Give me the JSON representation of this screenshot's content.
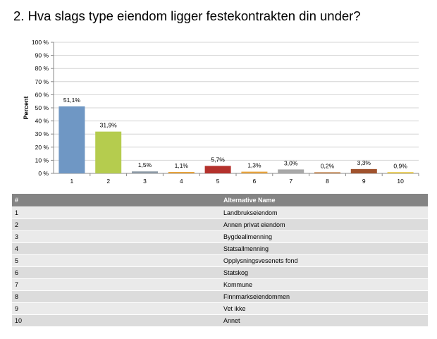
{
  "title": "2. Hva slags type eiendom ligger festekontrakten din under?",
  "chart_data": {
    "type": "bar",
    "categories": [
      "1",
      "2",
      "3",
      "4",
      "5",
      "6",
      "7",
      "8",
      "9",
      "10"
    ],
    "values": [
      51.1,
      31.9,
      1.5,
      1.1,
      5.7,
      1.3,
      3.0,
      0.2,
      3.3,
      0.9
    ],
    "value_labels": [
      "51,1%",
      "31,9%",
      "1,5%",
      "1,1%",
      "5,7%",
      "1,3%",
      "3,0%",
      "0,2%",
      "3,3%",
      "0,9%"
    ],
    "colors": [
      "#6f97c4",
      "#b5cc4e",
      "#8d9aa6",
      "#e6a23c",
      "#b4312c",
      "#e6a23c",
      "#a8a8a8",
      "#b46a2a",
      "#a0522d",
      "#e3c030"
    ],
    "ylabel": "Percent",
    "ylim": [
      0,
      100
    ],
    "yticks": [
      0,
      10,
      20,
      30,
      40,
      50,
      60,
      70,
      80,
      90,
      100
    ],
    "ytick_labels": [
      "0 %",
      "10 %",
      "20 %",
      "30 %",
      "40 %",
      "50 %",
      "60 %",
      "70 %",
      "80 %",
      "90 %",
      "100 %"
    ],
    "grid": true
  },
  "table": {
    "headers": [
      "#",
      "Alternative Name"
    ],
    "rows": [
      [
        "1",
        "Landbrukseiendom"
      ],
      [
        "2",
        "Annen privat eiendom"
      ],
      [
        "3",
        "Bygdeallmenning"
      ],
      [
        "4",
        "Statsallmenning"
      ],
      [
        "5",
        "Opplysningsvesenets fond"
      ],
      [
        "6",
        "Statskog"
      ],
      [
        "7",
        "Kommune"
      ],
      [
        "8",
        "Finnmarkseiendommen"
      ],
      [
        "9",
        "Vet ikke"
      ],
      [
        "10",
        "Annet"
      ]
    ]
  }
}
